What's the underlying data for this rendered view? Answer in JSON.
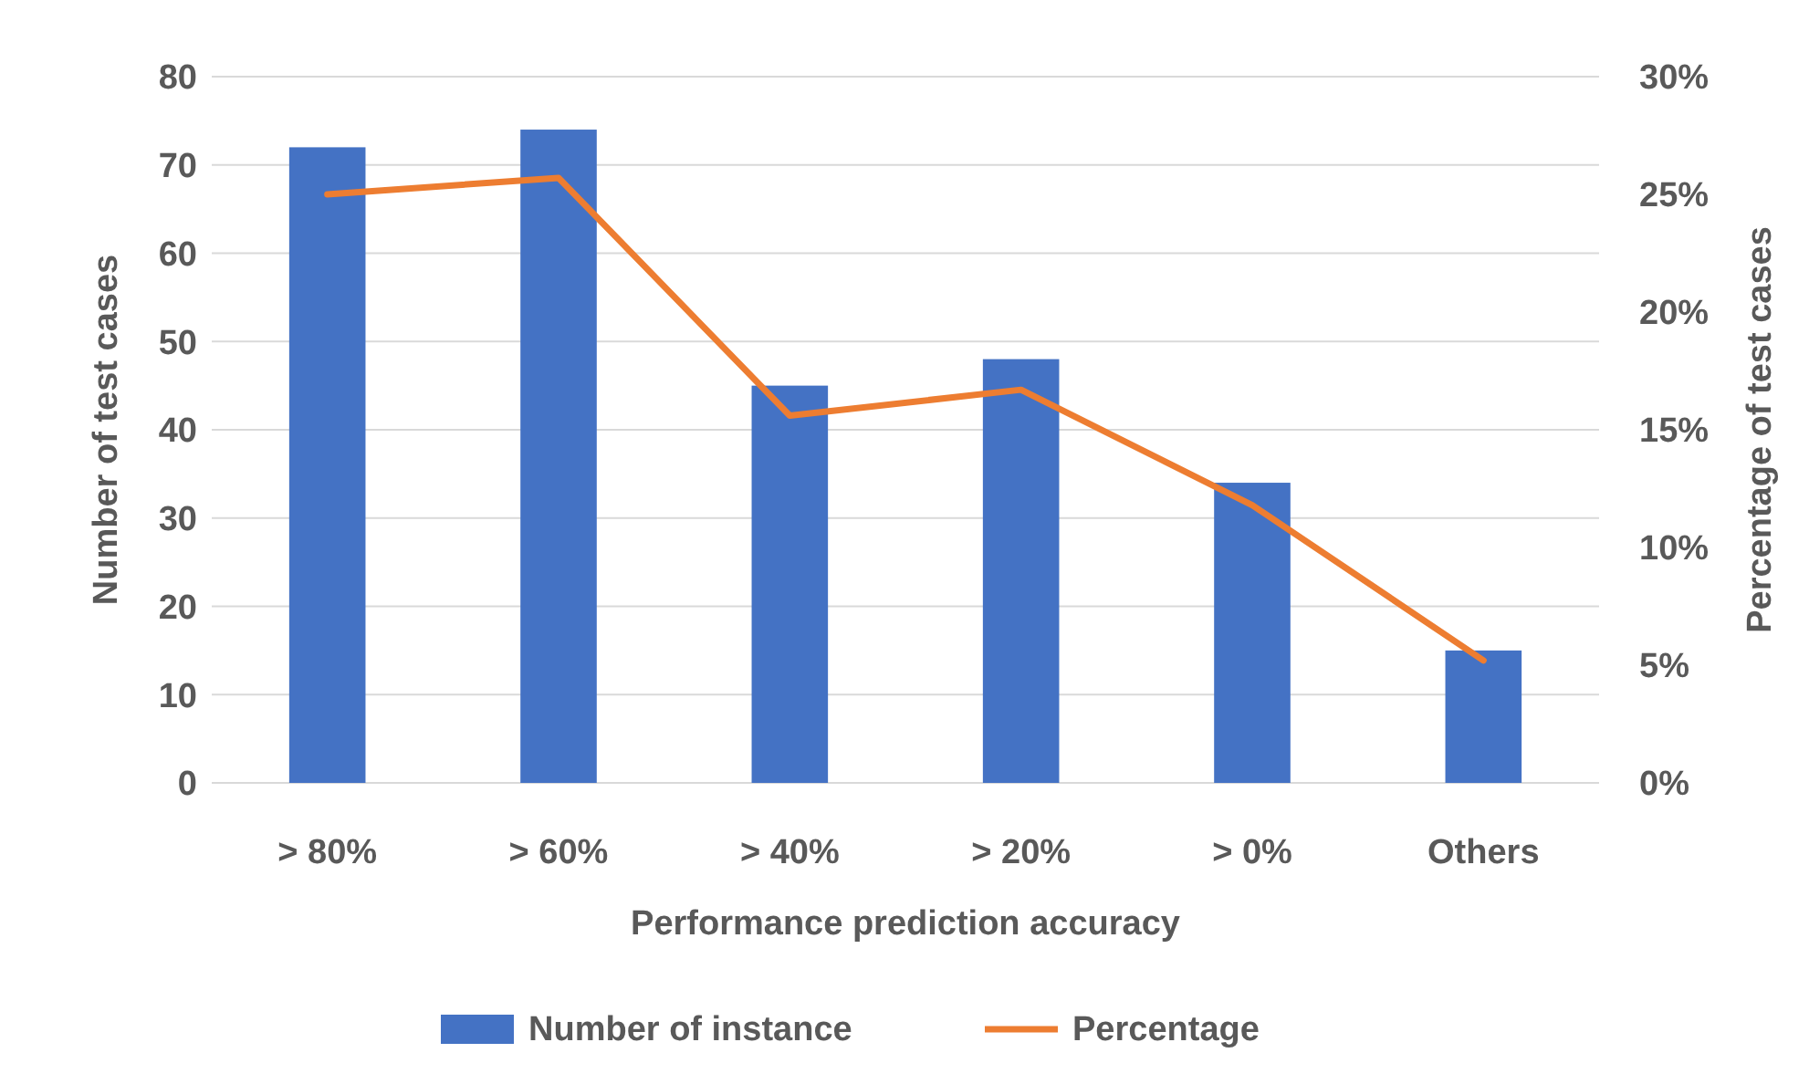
{
  "chart_data": {
    "type": "bar",
    "xlabel": "Performance prediction accuracy",
    "ylabel": "Number of test cases",
    "y2label": "Percentage of test cases",
    "categories": [
      "> 80%",
      "> 60%",
      "> 40%",
      "> 20%",
      "> 0%",
      "Others"
    ],
    "series": [
      {
        "name": "Number of instance",
        "color": "#4472c4",
        "values": [
          72,
          74,
          45,
          48,
          34,
          15
        ]
      },
      {
        "name": "Percentage",
        "type": "line",
        "axis": "y2",
        "color": "#ed7d31",
        "values": [
          25,
          25.7,
          15.6,
          16.7,
          11.8,
          5.2
        ]
      }
    ],
    "ylim": [
      0,
      80
    ],
    "yticks": [
      0,
      10,
      20,
      30,
      40,
      50,
      60,
      70,
      80
    ],
    "y2lim": [
      0,
      30
    ],
    "y2ticks": [
      {
        "value": 0,
        "label": "0%"
      },
      {
        "value": 5,
        "label": "5%"
      },
      {
        "value": 10,
        "label": "10%"
      },
      {
        "value": 15,
        "label": "15%"
      },
      {
        "value": 20,
        "label": "20%"
      },
      {
        "value": 25,
        "label": "25%"
      },
      {
        "value": 30,
        "label": "30%"
      }
    ],
    "grid": "y",
    "legend": "bottom",
    "marker": "none",
    "line_style": "solid"
  }
}
